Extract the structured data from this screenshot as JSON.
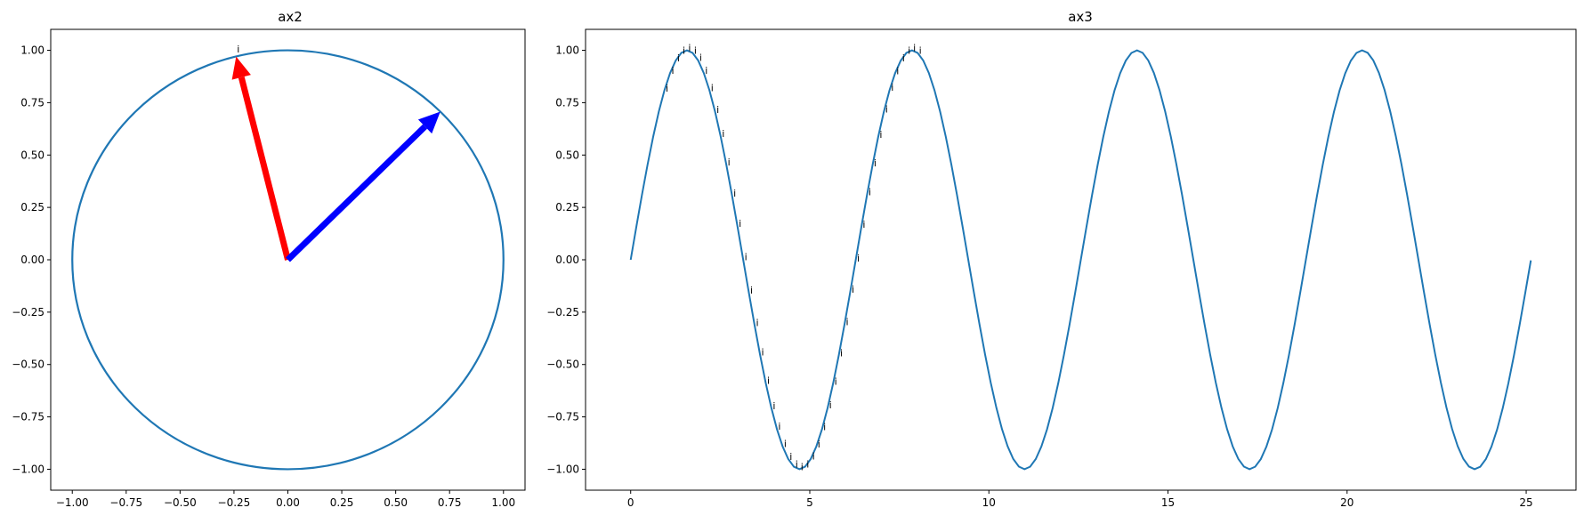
{
  "chart_data": [
    {
      "type": "line",
      "title": "ax2",
      "xlabel": "",
      "ylabel": "",
      "xlim": [
        -1.1,
        1.1
      ],
      "ylim": [
        -1.1,
        1.1
      ],
      "grid": false,
      "xticks": [
        -1.0,
        -0.75,
        -0.5,
        -0.25,
        0.0,
        0.25,
        0.5,
        0.75,
        1.0
      ],
      "xtick_labels": [
        "−1.00",
        "−0.75",
        "−0.50",
        "−0.25",
        "0.00",
        "0.25",
        "0.50",
        "0.75",
        "1.00"
      ],
      "yticks": [
        -1.0,
        -0.75,
        -0.5,
        -0.25,
        0.0,
        0.25,
        0.5,
        0.75,
        1.0
      ],
      "ytick_labels": [
        "−1.00",
        "−0.75",
        "−0.50",
        "−0.25",
        "0.00",
        "0.25",
        "0.50",
        "0.75",
        "1.00"
      ],
      "series": [
        {
          "kind": "unit-circle",
          "radius": 1.0,
          "color": "#1f77b4"
        }
      ],
      "arrows": [
        {
          "x": 0,
          "y": 0,
          "dx": -0.24,
          "dy": 0.97,
          "color": "#ff0000"
        },
        {
          "x": 0,
          "y": 0,
          "dx": 0.707,
          "dy": 0.707,
          "color": "#0000ff"
        }
      ],
      "annotations": [
        {
          "text": "i",
          "x": -0.23,
          "y": 0.99
        }
      ]
    },
    {
      "type": "line",
      "title": "ax3",
      "xlabel": "",
      "ylabel": "",
      "xlim": [
        -1.26,
        26.39
      ],
      "ylim": [
        -1.1,
        1.1
      ],
      "grid": false,
      "xticks": [
        0,
        5,
        10,
        15,
        20,
        25
      ],
      "xtick_labels": [
        "0",
        "5",
        "10",
        "15",
        "20",
        "25"
      ],
      "yticks": [
        -1.0,
        -0.75,
        -0.5,
        -0.25,
        0.0,
        0.25,
        0.5,
        0.75,
        1.0
      ],
      "ytick_labels": [
        "−1.00",
        "−0.75",
        "−0.50",
        "−0.25",
        "0.00",
        "0.25",
        "0.50",
        "0.75",
        "1.00"
      ],
      "series": [
        {
          "kind": "sine",
          "function": "y = sin(x)",
          "x_start": 0,
          "x_end": 25.13,
          "color": "#1f77b4"
        }
      ],
      "annotation_text": "i",
      "annotations_x": [
        0.94,
        1.1,
        1.26,
        1.41,
        1.57,
        1.73,
        1.88,
        2.04,
        2.2,
        2.36,
        2.51,
        2.67,
        2.83,
        2.98,
        3.14,
        3.3,
        3.46,
        3.61,
        3.77,
        3.93,
        4.08,
        4.24,
        4.4,
        4.56,
        4.71,
        4.87,
        5.03,
        5.18,
        5.34,
        5.5,
        5.65,
        5.81,
        5.97,
        6.13,
        6.28,
        6.44,
        6.6,
        6.75,
        6.91,
        7.07,
        7.23,
        7.38,
        7.54,
        7.7,
        7.85,
        8.01
      ]
    }
  ]
}
